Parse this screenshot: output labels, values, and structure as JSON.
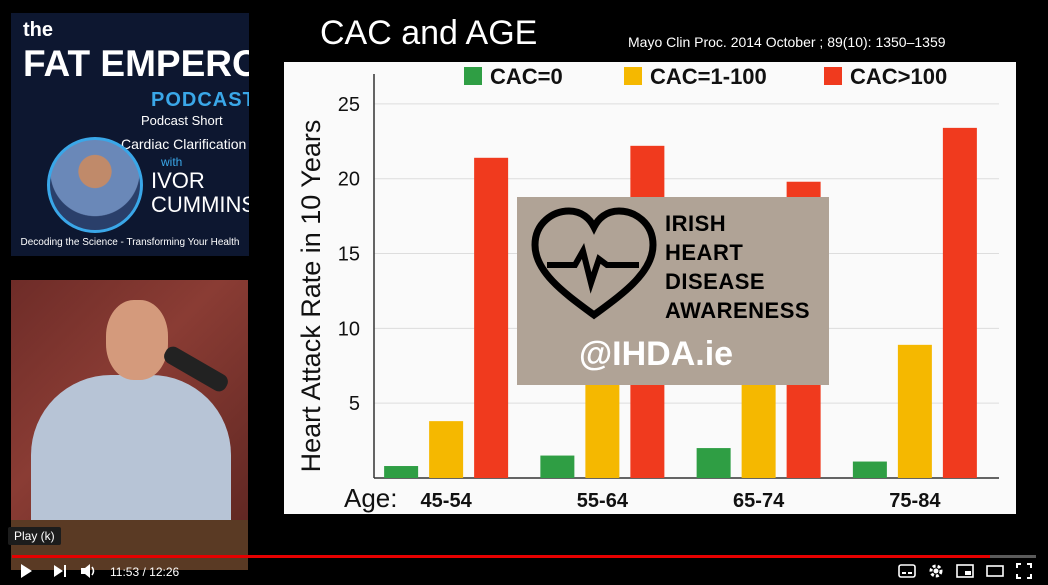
{
  "podcast": {
    "the": "the",
    "brand_fat": "FAT",
    "brand_emperor": "EMPEROR",
    "podcast_label": "PODCAST",
    "short": "Podcast Short",
    "clarification": "Cardiac Clarification",
    "with": "with",
    "ivor": "IVOR",
    "cummins": "CUMMINS",
    "tagline": "Decoding the Science - Transforming Your Health"
  },
  "slide": {
    "title": "CAC and AGE",
    "reference": "Mayo Clin Proc. 2014 October ; 89(10): 1350–1359"
  },
  "overlay": {
    "name_lines": [
      "IRISH",
      "HEART",
      "DISEASE",
      "AWARENESS"
    ],
    "handle": "@IHDA.ie"
  },
  "chart_data": {
    "type": "bar",
    "ylabel": "Heart Attack Rate in 10 Years",
    "xlabel": "Age:",
    "categories": [
      "45-54",
      "55-64",
      "65-74",
      "75-84"
    ],
    "ylim": [
      0,
      27
    ],
    "yticks": [
      5,
      10,
      15,
      20,
      25
    ],
    "legend_position": "top",
    "series": [
      {
        "name": "CAC=0",
        "color": "#2f9e44",
        "values": [
          0.8,
          1.5,
          2.0,
          1.1
        ]
      },
      {
        "name": "CAC=1-100",
        "color": "#f5b800",
        "values": [
          3.8,
          7.0,
          7.0,
          8.9
        ]
      },
      {
        "name": "CAC>100",
        "color": "#f03a1e",
        "values": [
          21.4,
          22.2,
          19.8,
          23.4
        ]
      }
    ],
    "grid": true
  },
  "player": {
    "tooltip": "Play (k)",
    "current_time": "11:53",
    "separator": "/",
    "duration": "12:26",
    "time_display": "11:53 / 12:26",
    "progress": 0.955
  }
}
